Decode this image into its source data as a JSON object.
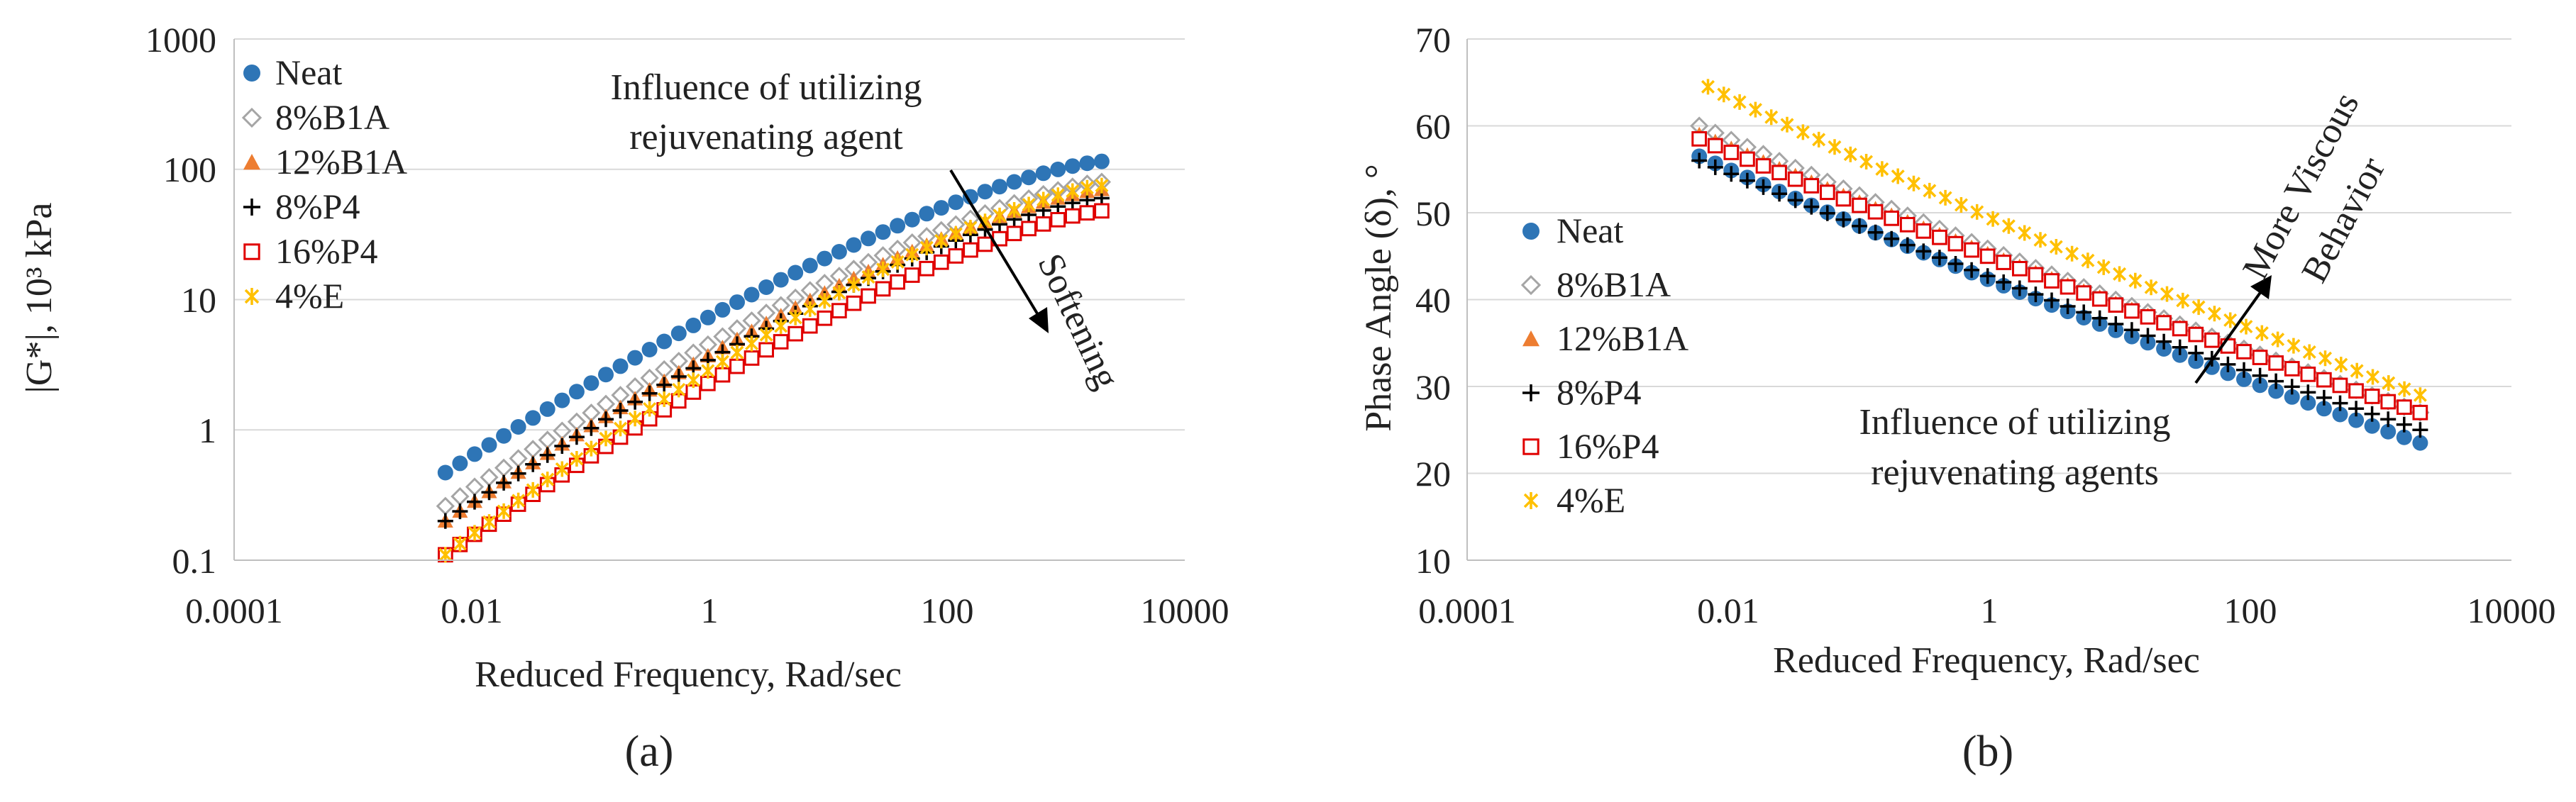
{
  "series_styles": [
    {
      "name": "Neat",
      "marker": "circle",
      "color": "#2E75B6"
    },
    {
      "name": "8%B1A",
      "marker": "diamond",
      "color": "#A5A5A5"
    },
    {
      "name": "12%B1A",
      "marker": "triangle",
      "color": "#ED7D31"
    },
    {
      "name": "8%P4",
      "marker": "plus",
      "color": "#000000"
    },
    {
      "name": "16%P4",
      "marker": "square",
      "color": "#E00000"
    },
    {
      "name": "4%E",
      "marker": "star",
      "color": "#FFC000"
    }
  ],
  "chart_data": [
    {
      "id": "a",
      "type": "scatter",
      "panel_label": "(a)",
      "xscale": "log",
      "yscale": "log",
      "xlim": [
        0.0001,
        10000
      ],
      "ylim": [
        0.1,
        1000
      ],
      "xticks": [
        "0.0001",
        "0.01",
        "1",
        "100",
        "10000"
      ],
      "yticks": [
        "0.1",
        "1",
        "10",
        "100",
        "1000"
      ],
      "xlabel": "Reduced Frequency, Rad/sec",
      "ylabel": "|G*|, 10³ kPa",
      "legend_position": "top-left",
      "annotations": [
        {
          "text": [
            "Influence of utilizing",
            "rejuvenating agent"
          ]
        },
        {
          "text": [
            "Softening"
          ]
        }
      ],
      "series": [
        {
          "name": "Neat",
          "x_range": [
            0.006,
            2000
          ],
          "y_start": 0.47,
          "y_end": 115
        },
        {
          "name": "8%B1A",
          "x_range": [
            0.006,
            2000
          ],
          "y_start": 0.26,
          "y_end": 80
        },
        {
          "name": "12%B1A",
          "x_range": [
            0.006,
            2000
          ],
          "y_start": 0.2,
          "y_end": 70
        },
        {
          "name": "8%P4",
          "x_range": [
            0.006,
            2000
          ],
          "y_start": 0.2,
          "y_end": 60
        },
        {
          "name": "16%P4",
          "x_range": [
            0.006,
            2000
          ],
          "y_start": 0.11,
          "y_end": 48
        },
        {
          "name": "4%E",
          "x_range": [
            0.006,
            2000
          ],
          "y_start": 0.11,
          "y_end": 75
        }
      ]
    },
    {
      "id": "b",
      "type": "scatter",
      "panel_label": "(b)",
      "xscale": "log",
      "yscale": "linear",
      "xlim": [
        0.0001,
        10000
      ],
      "ylim": [
        10,
        70
      ],
      "xticks": [
        "0.0001",
        "0.01",
        "1",
        "100",
        "10000"
      ],
      "yticks": [
        "10",
        "20",
        "30",
        "40",
        "50",
        "60",
        "70"
      ],
      "xlabel": "Reduced Frequency, Rad/sec",
      "ylabel": "Phase Angle (δ), °",
      "legend_position": "left",
      "annotations": [
        {
          "text": [
            "Influence of utilizing",
            "rejuvenating agents"
          ]
        },
        {
          "text": [
            "More Viscous",
            "Behavior"
          ]
        }
      ],
      "series": [
        {
          "name": "Neat",
          "x_range": [
            0.006,
            2000
          ],
          "y_start": 56.5,
          "y_end": 23.5
        },
        {
          "name": "8%B1A",
          "x_range": [
            0.006,
            2000
          ],
          "y_start": 60,
          "y_end": 27
        },
        {
          "name": "12%B1A",
          "x_range": [
            0.006,
            2000
          ],
          "y_start": 59,
          "y_end": 27
        },
        {
          "name": "8%P4",
          "x_range": [
            0.006,
            2000
          ],
          "y_start": 56,
          "y_end": 25
        },
        {
          "name": "16%P4",
          "x_range": [
            0.006,
            2000
          ],
          "y_start": 58.5,
          "y_end": 27
        },
        {
          "name": "4%E",
          "x_range": [
            0.007,
            2000
          ],
          "y_start": 64.5,
          "y_end": 29
        }
      ]
    }
  ]
}
